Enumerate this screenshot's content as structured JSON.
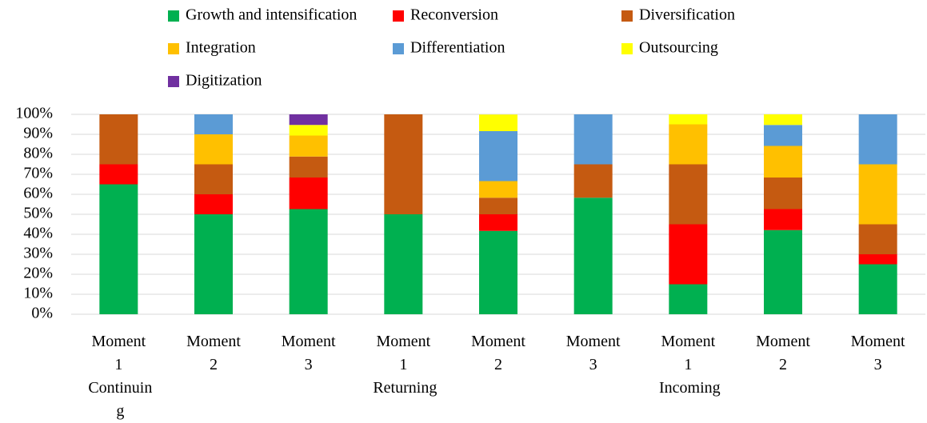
{
  "chart_data": {
    "type": "stacked_bar",
    "categories": [
      "Moment 1",
      "Moment 2",
      "Moment 3",
      "Moment 1",
      "Moment 2",
      "Moment 3",
      "Moment 1",
      "Moment 2",
      "Moment 3"
    ],
    "group_labels": [
      "Continuing",
      "Returning",
      "Incoming"
    ],
    "series": [
      {
        "name": "Growth and intensification",
        "color": "#00b050",
        "values": [
          65,
          50,
          52.6,
          50,
          41.7,
          58.3,
          15,
          42.1,
          25
        ]
      },
      {
        "name": "Reconversion",
        "color": "#ff0000",
        "values": [
          10,
          10,
          15.8,
          0,
          8.3,
          0,
          30,
          10.5,
          5
        ]
      },
      {
        "name": "Diversification",
        "color": "#c55a11",
        "values": [
          25,
          15,
          10.5,
          50,
          8.3,
          16.7,
          30,
          15.8,
          15
        ]
      },
      {
        "name": "Integration",
        "color": "#ffc000",
        "values": [
          0,
          15,
          10.5,
          0,
          8.3,
          0,
          20,
          15.8,
          30
        ]
      },
      {
        "name": "Differentiation",
        "color": "#5b9bd5",
        "values": [
          0,
          10,
          0,
          0,
          25,
          25,
          0,
          10.5,
          25
        ]
      },
      {
        "name": "Outsourcing",
        "color": "#ffff00",
        "values": [
          0,
          0,
          5.3,
          0,
          8.3,
          0,
          5,
          5.3,
          0
        ]
      },
      {
        "name": "Digitization",
        "color": "#7030a0",
        "values": [
          0,
          0,
          5.3,
          0,
          0,
          0,
          0,
          0,
          0
        ]
      }
    ],
    "ylim": [
      0,
      100
    ],
    "yticks": [
      {
        "value": 0,
        "label": "0%"
      },
      {
        "value": 10,
        "label": "10%"
      },
      {
        "value": 20,
        "label": "20%"
      },
      {
        "value": 30,
        "label": "30%"
      },
      {
        "value": 40,
        "label": "40%"
      },
      {
        "value": 50,
        "label": "50%"
      },
      {
        "value": 60,
        "label": "60%"
      },
      {
        "value": 70,
        "label": "70%"
      },
      {
        "value": 80,
        "label": "80%"
      },
      {
        "value": 90,
        "label": "90%"
      },
      {
        "value": 100,
        "label": "100%"
      }
    ],
    "grid": true
  }
}
